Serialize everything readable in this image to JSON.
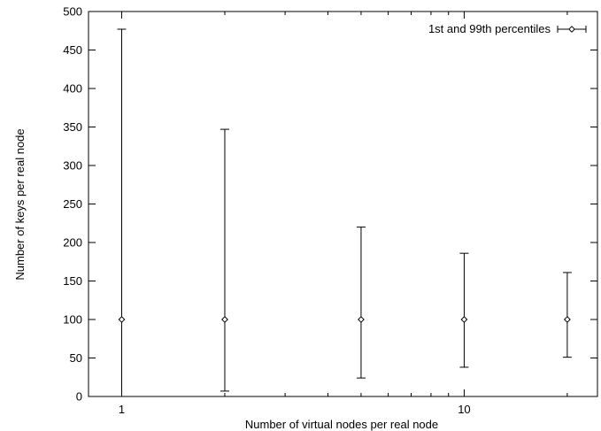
{
  "chart_data": {
    "type": "scatter",
    "title": "",
    "xlabel": "Number of virtual nodes per real node",
    "ylabel": "Number of keys per real node",
    "x_scale": "log",
    "xlim": [
      0.8,
      24.5
    ],
    "ylim": [
      0,
      500
    ],
    "x_ticks": [
      {
        "value": 1,
        "label": "1"
      },
      {
        "value": 10,
        "label": "10"
      }
    ],
    "y_ticks": [
      {
        "value": 0,
        "label": "0"
      },
      {
        "value": 50,
        "label": "50"
      },
      {
        "value": 100,
        "label": "100"
      },
      {
        "value": 150,
        "label": "150"
      },
      {
        "value": 200,
        "label": "200"
      },
      {
        "value": 250,
        "label": "250"
      },
      {
        "value": 300,
        "label": "300"
      },
      {
        "value": 350,
        "label": "350"
      },
      {
        "value": 400,
        "label": "400"
      },
      {
        "value": 450,
        "label": "450"
      },
      {
        "value": 500,
        "label": "500"
      }
    ],
    "grid": false,
    "legend_position": "top-right",
    "series": [
      {
        "name": "1st and 99th percentiles",
        "points": [
          {
            "x": 1,
            "y": 100,
            "low": 0,
            "high": 477
          },
          {
            "x": 2,
            "y": 100,
            "low": 7,
            "high": 347
          },
          {
            "x": 5,
            "y": 100,
            "low": 24,
            "high": 220
          },
          {
            "x": 10,
            "y": 100,
            "low": 38,
            "high": 186
          },
          {
            "x": 20,
            "y": 100,
            "low": 51,
            "high": 161
          }
        ]
      }
    ]
  }
}
